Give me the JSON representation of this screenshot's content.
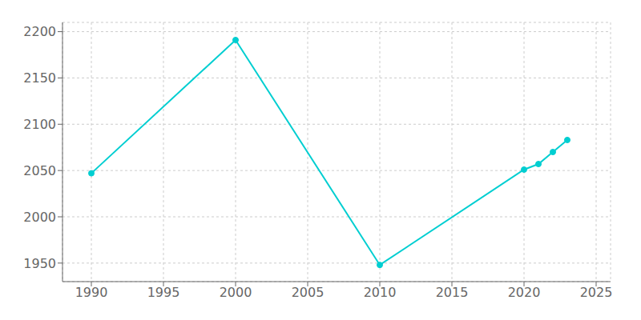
{
  "chart_data": {
    "type": "line",
    "x": [
      1990,
      2000,
      2010,
      2020,
      2021,
      2022,
      2023
    ],
    "values": [
      2047,
      2191,
      1948,
      2051,
      2057,
      2070,
      2083
    ],
    "color": "#00CED1",
    "marker": "circle",
    "xlim": [
      1988,
      2026
    ],
    "ylim": [
      1930,
      2210
    ],
    "xticks": [
      1990,
      1995,
      2000,
      2005,
      2010,
      2015,
      2020,
      2025
    ],
    "yticks": [
      1950,
      2000,
      2050,
      2100,
      2150,
      2200
    ],
    "grid": true
  }
}
